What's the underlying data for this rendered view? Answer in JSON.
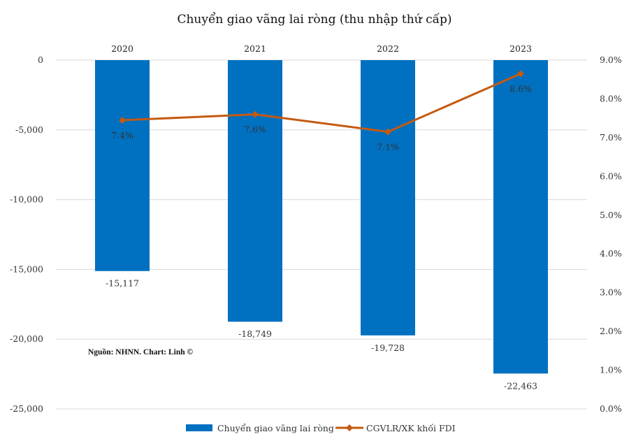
{
  "chart_data": {
    "type": "bar",
    "title": "Chuyển giao vãng lai ròng (thu nhập thứ cấp)",
    "categories": [
      "2020",
      "2021",
      "2022",
      "2023"
    ],
    "series": [
      {
        "name": "Chuyển giao vãng lai ròng",
        "type": "bar",
        "axis": "left",
        "color": "#0070c0",
        "values": [
          -15117,
          -18749,
          -19728,
          -22463
        ],
        "labels": [
          "-15,117",
          "-18,749",
          "-19,728",
          "-22,463"
        ]
      },
      {
        "name": "CGVLR/XK khối FDI",
        "type": "line",
        "axis": "right",
        "color": "#c55a11",
        "marker": "diamond",
        "values": [
          7.45,
          7.6,
          7.15,
          8.65
        ],
        "labels": [
          "7.4%",
          "7.6%",
          "7.1%",
          "8.6%"
        ]
      }
    ],
    "y_left": {
      "ylim": [
        -25000,
        0
      ],
      "ticks": [
        0,
        -5000,
        -10000,
        -15000,
        -20000,
        -25000
      ],
      "tick_labels": [
        "0",
        "-5,000",
        "-10,000",
        "-15,000",
        "-20,000",
        "-25,000"
      ]
    },
    "y_right": {
      "ylim": [
        0,
        9
      ],
      "ticks": [
        9,
        8,
        7,
        6,
        5,
        4,
        3,
        2,
        1,
        0
      ],
      "tick_labels": [
        "9.0%",
        "8.0%",
        "7.0%",
        "6.0%",
        "5.0%",
        "4.0%",
        "3.0%",
        "2.0%",
        "1.0%",
        "0.0%"
      ]
    },
    "category_axis_position": "top",
    "grid": true,
    "legend_position": "bottom",
    "source_note": "Nguồn: NHNN. Chart: Linh ©"
  }
}
